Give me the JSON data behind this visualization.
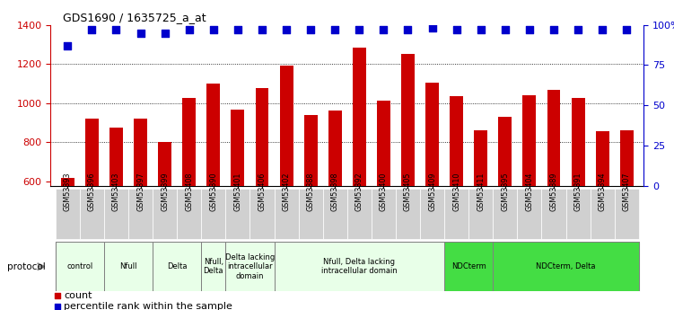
{
  "title": "GDS1690 / 1635725_a_at",
  "samples": [
    "GSM53393",
    "GSM53396",
    "GSM53403",
    "GSM53397",
    "GSM53399",
    "GSM53408",
    "GSM53390",
    "GSM53401",
    "GSM53406",
    "GSM53402",
    "GSM53388",
    "GSM53398",
    "GSM53392",
    "GSM53400",
    "GSM53405",
    "GSM53409",
    "GSM53410",
    "GSM53411",
    "GSM53395",
    "GSM53404",
    "GSM53389",
    "GSM53391",
    "GSM53394",
    "GSM53407"
  ],
  "counts": [
    615,
    920,
    875,
    920,
    800,
    1025,
    1100,
    965,
    1075,
    1190,
    940,
    960,
    1285,
    1010,
    1250,
    1105,
    1035,
    860,
    930,
    1040,
    1065,
    1025,
    855,
    860
  ],
  "percentiles": [
    87,
    97,
    97,
    95,
    95,
    97,
    97,
    97,
    97,
    97,
    97,
    97,
    97,
    97,
    97,
    98,
    97,
    97,
    97,
    97,
    97,
    97,
    97,
    97
  ],
  "bar_color": "#cc0000",
  "dot_color": "#0000cc",
  "ylim_left": [
    575,
    1400
  ],
  "ylim_right": [
    0,
    100
  ],
  "yticks_left": [
    600,
    800,
    1000,
    1200,
    1400
  ],
  "yticks_right": [
    0,
    25,
    50,
    75,
    100
  ],
  "grid_values": [
    800,
    1000,
    1200
  ],
  "protocols": [
    {
      "label": "control",
      "start": 0,
      "end": 2,
      "color": "#e8ffe8"
    },
    {
      "label": "Nfull",
      "start": 2,
      "end": 4,
      "color": "#e8ffe8"
    },
    {
      "label": "Delta",
      "start": 4,
      "end": 6,
      "color": "#e8ffe8"
    },
    {
      "label": "Nfull,\nDelta",
      "start": 6,
      "end": 7,
      "color": "#e8ffe8"
    },
    {
      "label": "Delta lacking\nintracellular\ndomain",
      "start": 7,
      "end": 9,
      "color": "#e8ffe8"
    },
    {
      "label": "Nfull, Delta lacking\nintracellular domain",
      "start": 9,
      "end": 16,
      "color": "#e8ffe8"
    },
    {
      "label": "NDCterm",
      "start": 16,
      "end": 18,
      "color": "#44dd44"
    },
    {
      "label": "NDCterm, Delta",
      "start": 18,
      "end": 24,
      "color": "#44dd44"
    }
  ],
  "bar_width": 0.55,
  "dot_size": 30,
  "dot_marker": "s",
  "axis_color_left": "#cc0000",
  "axis_color_right": "#0000cc",
  "title_fontsize": 9,
  "tick_fontsize": 6.5,
  "legend_fontsize": 8,
  "protocol_label": "protocol",
  "legend_count": "count",
  "legend_percentile": "percentile rank within the sample"
}
